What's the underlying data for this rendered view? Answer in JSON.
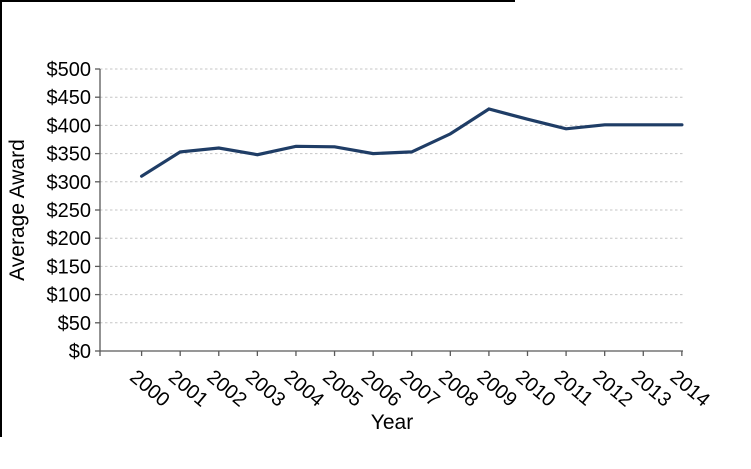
{
  "frame": {
    "border_color": "#000000"
  },
  "chart_data": {
    "type": "line",
    "title": "",
    "xlabel": "Year",
    "ylabel": "Average Award",
    "categories": [
      "2000",
      "2001",
      "2002",
      "2003",
      "2004",
      "2005",
      "2006",
      "2007",
      "2008",
      "2009",
      "2010",
      "2011",
      "2012",
      "2013",
      "2014"
    ],
    "series": [
      {
        "name": "Average Award",
        "values": [
          310,
          353,
          360,
          348,
          363,
          362,
          350,
          353,
          385,
          429,
          411,
          394,
          401,
          401,
          401
        ]
      }
    ],
    "ylim": [
      0,
      500
    ],
    "ytick_step": 50,
    "y_tick_labels": [
      "$0",
      "$50",
      "$100",
      "$150",
      "$200",
      "$250",
      "$300",
      "$350",
      "$400",
      "$450",
      "$500"
    ],
    "grid": "horizontal-dashed",
    "legend": "none",
    "x_label_rotation_deg": 40,
    "colors": {
      "line": "#1f3d66",
      "gridline": "#c6c6c6",
      "axis": "#595959",
      "text": "#000000",
      "background": "#ffffff"
    }
  }
}
